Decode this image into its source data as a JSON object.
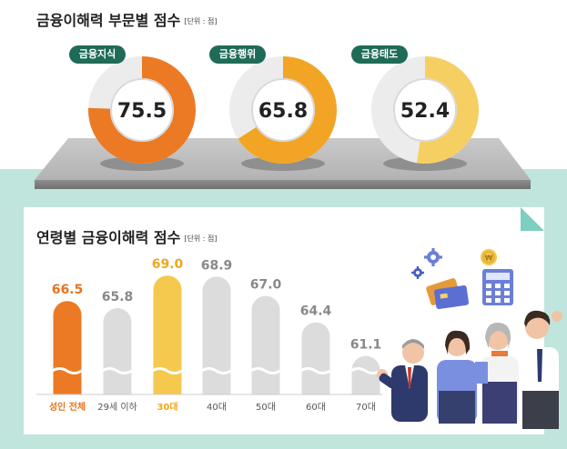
{
  "section1": {
    "title": "금융이해력 부문별 점수",
    "unit": "[단위 : 점]"
  },
  "section2": {
    "title": "연령별 금융이해력 점수",
    "unit": "[단위 : 점]"
  },
  "chart_data": [
    {
      "type": "pie",
      "title": "금융이해력 부문별 점수",
      "unit": "[단위 : 점]",
      "max": 100,
      "categories": [
        "금융지식",
        "금융행위",
        "금융태도"
      ],
      "values": [
        75.5,
        65.8,
        52.4
      ],
      "colors": [
        "#ec7a24",
        "#f2a524",
        "#f6cf63"
      ],
      "track_color": "#ececec"
    },
    {
      "type": "bar",
      "title": "연령별 금융이해력 점수",
      "unit": "[단위 : 점]",
      "categories": [
        "성인 전체",
        "29세 이하",
        "30대",
        "40대",
        "50대",
        "60대",
        "70대"
      ],
      "values": [
        66.5,
        65.8,
        69.0,
        68.9,
        67.0,
        64.4,
        61.1
      ],
      "value_labels": [
        "66.5",
        "65.8",
        "69.0",
        "68.9",
        "67.0",
        "64.4",
        "61.1"
      ],
      "colors": [
        "#ec7a24",
        "#dcdcdc",
        "#f5c84e",
        "#dcdcdc",
        "#dcdcdc",
        "#dcdcdc",
        "#dcdcdc"
      ],
      "label_colors": [
        "#e8731f",
        "#888888",
        "#efa71c",
        "#888888",
        "#888888",
        "#888888",
        "#888888"
      ],
      "highlight": [
        "성인 전체",
        "30대"
      ]
    }
  ],
  "colors": {
    "accent": "#ec7a24",
    "pill": "#1f6b58",
    "background_band": "#bfe5dd"
  }
}
